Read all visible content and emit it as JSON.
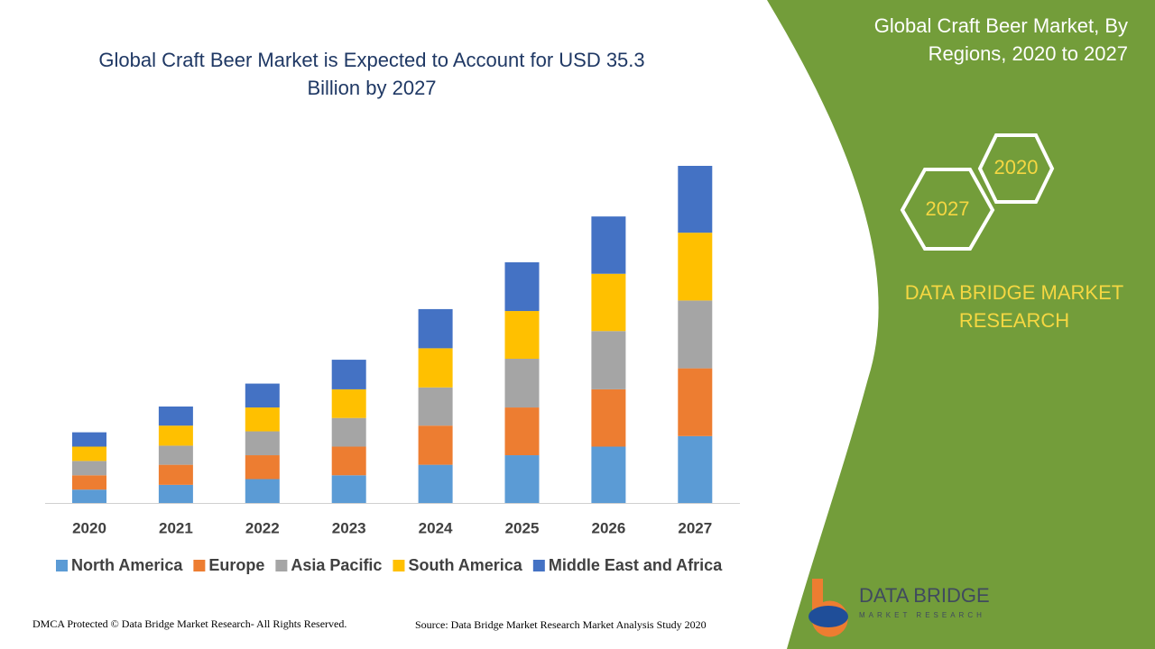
{
  "chart_data": {
    "type": "stacked_bar",
    "title": [
      "Global Craft Beer Market is Expected to Account for USD 35.3",
      "Billion by 2027"
    ],
    "categories": [
      "2020",
      "2021",
      "2022",
      "2023",
      "2024",
      "2025",
      "2026",
      "2027"
    ],
    "series": [
      {
        "name": "North America",
        "color": "#5b9bd5",
        "values": [
          1.4,
          1.9,
          2.5,
          2.9,
          4.0,
          5.0,
          5.9,
          7.0
        ]
      },
      {
        "name": "Europe",
        "color": "#ed7d31",
        "values": [
          1.5,
          2.1,
          2.5,
          3.0,
          4.1,
          5.0,
          6.0,
          7.1
        ]
      },
      {
        "name": "Asia Pacific",
        "color": "#a5a5a5",
        "values": [
          1.5,
          2.0,
          2.5,
          3.0,
          4.0,
          5.1,
          6.1,
          7.1
        ]
      },
      {
        "name": "South America",
        "color": "#ffc000",
        "values": [
          1.5,
          2.1,
          2.5,
          3.0,
          4.1,
          5.0,
          6.0,
          7.1
        ]
      },
      {
        "name": "Middle East and Africa",
        "color": "#4472c4",
        "values": [
          1.5,
          2.0,
          2.5,
          3.1,
          4.1,
          5.1,
          6.0,
          7.0
        ]
      }
    ],
    "legend": "bottom"
  },
  "panel": {
    "title": [
      "Global Craft Beer Market, By",
      "Regions, 2020 to 2027"
    ],
    "hexagons": [
      "2020",
      "2027"
    ],
    "brand": [
      "DATA BRIDGE MARKET",
      "RESEARCH"
    ]
  },
  "logo": {
    "name": "DATA BRIDGE",
    "tagline": "MARKET RESEARCH"
  },
  "footer": {
    "copyright": "DMCA Protected © Data Bridge Market Research- All Rights Reserved.",
    "source": "Source: Data Bridge Market Research Market Analysis Study 2020"
  }
}
